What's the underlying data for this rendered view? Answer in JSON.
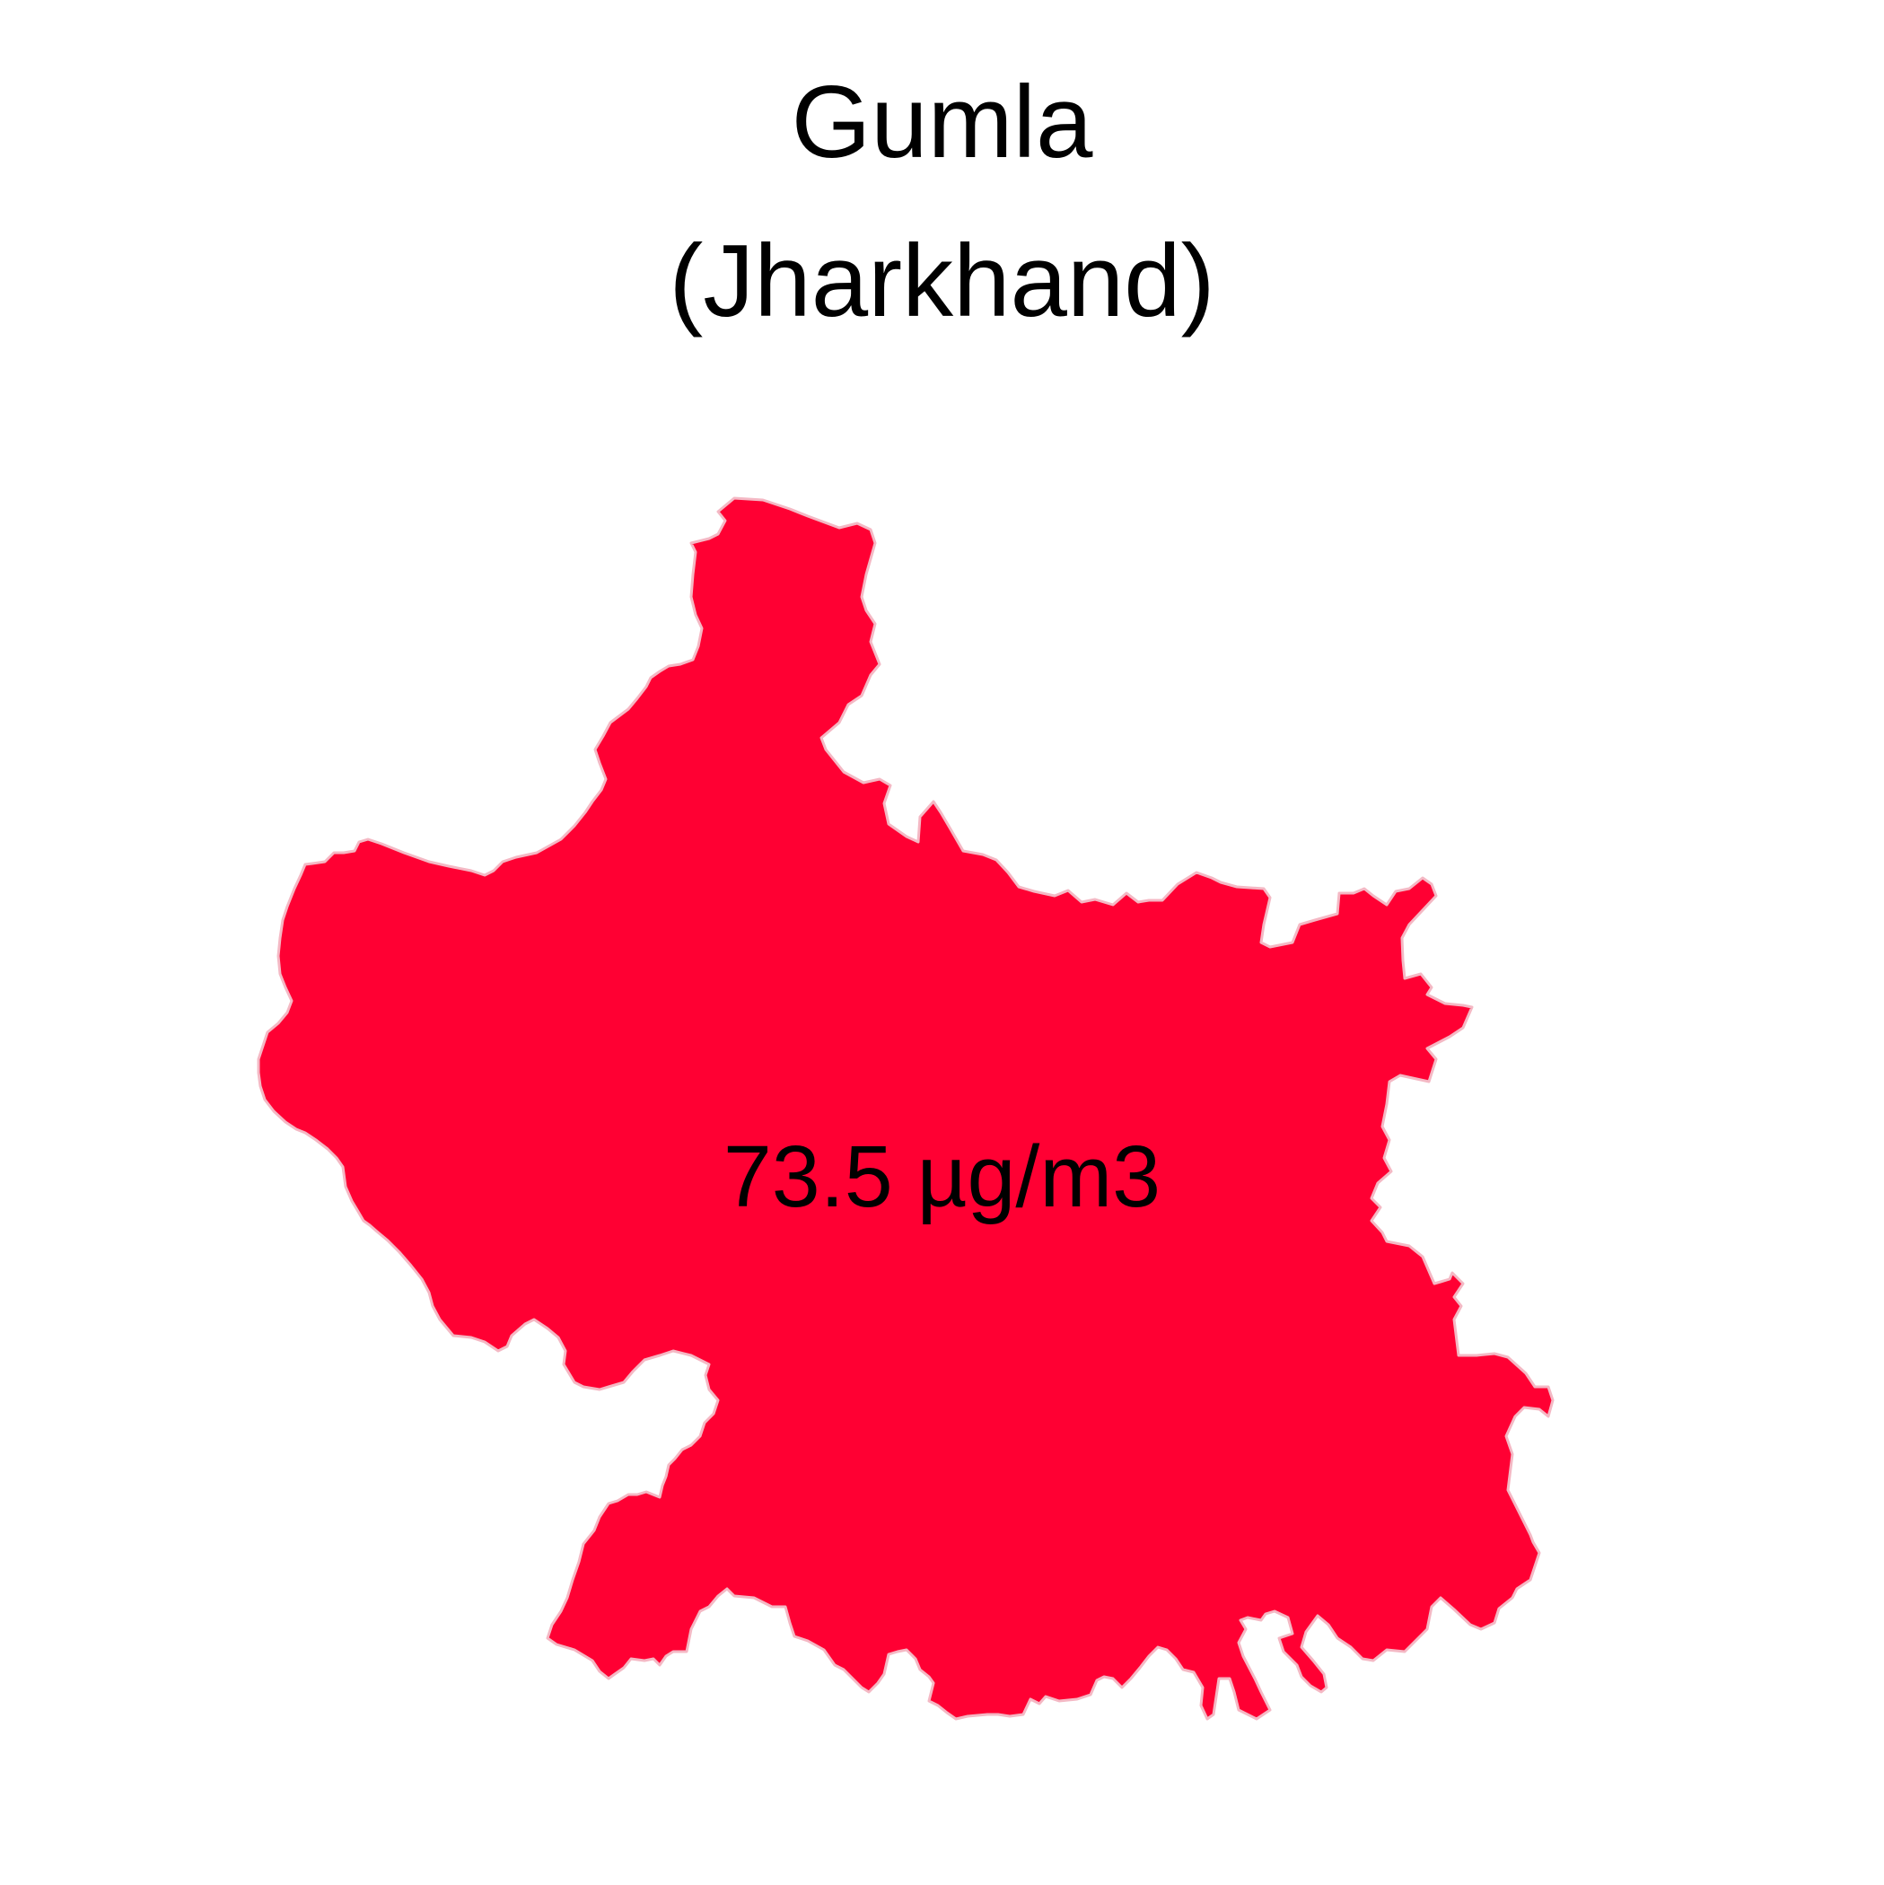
{
  "map": {
    "title_line_1": "Gumla",
    "title_line_2": "(Jharkhand)",
    "region": {
      "name": "Gumla",
      "value_label": "73.5 µg/m3",
      "fill_color": "#ff0033",
      "border_color": "#f4b8c4"
    }
  }
}
